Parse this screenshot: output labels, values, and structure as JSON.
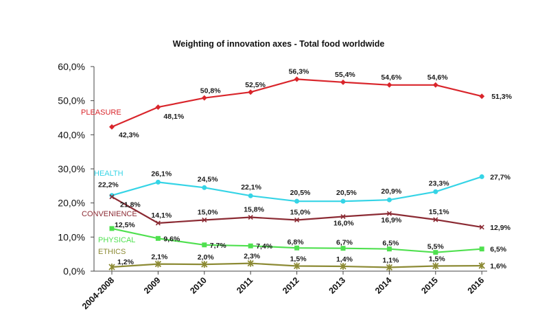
{
  "chart_data": {
    "type": "line",
    "title": "Weighting of innovation axes - Total food worldwide",
    "xlabel": "",
    "ylabel": "",
    "categories": [
      "2004-2008",
      "2009",
      "2010",
      "2011",
      "2012",
      "2013",
      "2014",
      "2015",
      "2016"
    ],
    "ylim": [
      0,
      60
    ],
    "yticks": [
      "0,0%",
      "10,0%",
      "20,0%",
      "30,0%",
      "40,0%",
      "50,0%",
      "60,0%"
    ],
    "grid": false,
    "series": [
      {
        "name": "PLEASURE",
        "color": "#d9252b",
        "marker": "diamond",
        "values": [
          42.3,
          48.1,
          50.8,
          52.5,
          56.3,
          55.4,
          54.6,
          54.6,
          51.3
        ],
        "labels": [
          "42,3%",
          "48,1%",
          "50,8%",
          "52,5%",
          "56,3%",
          "55,4%",
          "54,6%",
          "54,6%",
          "51,3%"
        ]
      },
      {
        "name": "HEALTH",
        "color": "#35d4e6",
        "marker": "circle",
        "values": [
          22.2,
          26.1,
          24.5,
          22.1,
          20.5,
          20.5,
          20.9,
          23.3,
          27.7
        ],
        "labels": [
          "22,2%",
          "26,1%",
          "24,5%",
          "22,1%",
          "20,5%",
          "20,5%",
          "20,9%",
          "23,3%",
          "27,7%"
        ]
      },
      {
        "name": "CONVENIENCE",
        "color": "#8b2a33",
        "marker": "x",
        "values": [
          21.8,
          14.1,
          15.0,
          15.8,
          15.0,
          16.0,
          16.9,
          15.1,
          12.9
        ],
        "labels": [
          "21,8%",
          "14,1%",
          "15,0%",
          "15,8%",
          "15,0%",
          "16,0%",
          "16,9%",
          "15,1%",
          "12,9%"
        ]
      },
      {
        "name": "PHYSICAL",
        "color": "#4fe04f",
        "marker": "square",
        "values": [
          12.5,
          9.6,
          7.7,
          7.4,
          6.8,
          6.7,
          6.5,
          5.5,
          6.5
        ],
        "labels": [
          "12,5%",
          "9,6%",
          "7,7%",
          "7,4%",
          "6,8%",
          "6,7%",
          "6,5%",
          "5,5%",
          "6,5%"
        ]
      },
      {
        "name": "ETHICS",
        "color": "#8c8a34",
        "marker": "star",
        "values": [
          1.2,
          2.1,
          2.0,
          2.3,
          1.5,
          1.4,
          1.1,
          1.5,
          1.6
        ],
        "labels": [
          "1,2%",
          "2,1%",
          "2,0%",
          "2,3%",
          "1,5%",
          "1,4%",
          "1,1%",
          "1,5%",
          "1,6%"
        ]
      }
    ]
  }
}
